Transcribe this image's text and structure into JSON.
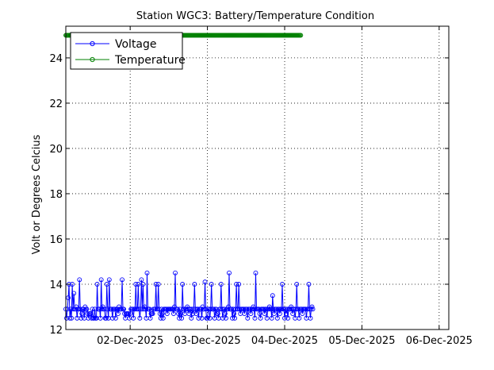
{
  "chart_data": {
    "type": "line",
    "title": "Station WGC3: Battery/Temperature Condition",
    "xlabel": "",
    "ylabel": "Volt or Degrees Celcius",
    "x_range": [
      "2025-12-01T04:00",
      "2025-12-06T03:00"
    ],
    "x_ticks": [
      "02-Dec-2025",
      "03-Dec-2025",
      "04-Dec-2025",
      "05-Dec-2025",
      "06-Dec-2025"
    ],
    "ylim": [
      12,
      25.4
    ],
    "y_ticks": [
      12,
      14,
      16,
      18,
      20,
      22,
      24
    ],
    "grid": true,
    "legend_position": "top-left",
    "series": [
      {
        "name": "Voltage",
        "color": "#0000ff",
        "marker": "circle",
        "start": "2025-12-01T04:00",
        "step_hours": 0.25,
        "values": [
          12.9,
          12.5,
          12.9,
          13.4,
          14.0,
          12.5,
          12.9,
          12.5,
          14.0,
          12.9,
          13.6,
          12.9,
          12.9,
          13.0,
          12.5,
          12.9,
          12.9,
          14.2,
          12.9,
          12.5,
          12.7,
          12.9,
          12.9,
          12.5,
          13.0,
          12.9,
          12.9,
          12.7,
          12.5,
          12.7,
          12.7,
          12.7,
          12.5,
          12.9,
          12.5,
          12.5,
          12.9,
          12.5,
          12.5,
          14.0,
          12.9,
          12.9,
          12.9,
          12.5,
          14.2,
          12.9,
          13.0,
          12.9,
          12.9,
          12.5,
          12.5,
          14.0,
          12.9,
          12.5,
          14.2,
          12.9,
          12.9,
          12.9,
          12.5,
          12.9,
          12.9,
          12.9,
          12.5,
          12.9,
          12.9,
          12.7,
          13.0,
          12.9,
          12.9,
          12.9,
          14.2,
          12.9,
          12.9,
          12.7,
          12.5,
          12.7,
          12.7,
          12.7,
          12.7,
          12.5,
          12.7,
          12.9,
          12.9,
          12.9,
          12.5,
          12.9,
          12.9,
          14.0,
          12.9,
          12.9,
          14.0,
          12.9,
          12.5,
          12.9,
          14.2,
          12.9,
          14.0,
          12.9,
          13.0,
          12.9,
          12.5,
          14.5,
          12.9,
          12.9,
          12.9,
          12.5,
          12.7,
          12.7,
          12.7,
          12.9,
          12.9,
          12.9,
          14.0,
          12.9,
          12.9,
          14.0,
          12.9,
          12.7,
          12.5,
          12.9,
          12.7,
          12.5,
          12.9,
          12.9,
          12.9,
          12.9,
          12.7,
          12.9,
          12.9,
          12.9,
          12.9,
          12.9,
          12.9,
          12.9,
          12.7,
          13.0,
          14.5,
          12.9,
          12.9,
          12.9,
          12.7,
          12.5,
          12.9,
          12.7,
          12.5,
          14.0,
          12.9,
          12.9,
          12.7,
          12.9,
          12.9,
          13.0,
          12.9,
          12.7,
          12.9,
          12.9,
          12.5,
          12.9,
          12.7,
          12.9,
          14.0,
          12.9,
          12.7,
          12.9,
          12.9,
          12.5,
          12.9,
          12.9,
          12.9,
          12.5,
          13.0,
          12.9,
          12.9,
          14.1,
          12.9,
          12.5,
          12.5,
          12.9,
          12.9,
          12.5,
          12.9,
          14.0,
          12.9,
          12.9,
          12.9,
          12.5,
          12.9,
          12.9,
          12.7,
          12.7,
          12.5,
          12.9,
          12.9,
          14.0,
          12.9,
          12.5,
          12.9,
          12.9,
          12.7,
          12.5,
          12.9,
          12.9,
          13.0,
          14.5,
          12.9,
          12.9,
          12.9,
          12.5,
          12.9,
          12.7,
          12.5,
          12.9,
          14.0,
          12.9,
          12.9,
          14.0,
          12.9,
          12.7,
          12.9,
          12.9,
          12.9,
          12.9,
          12.7,
          12.9,
          12.9,
          12.9,
          12.5,
          12.9,
          12.9,
          12.9,
          12.7,
          12.9,
          12.9,
          13.0,
          12.9,
          12.5,
          14.5,
          12.9,
          12.9,
          12.9,
          12.9,
          12.7,
          12.5,
          12.9,
          12.9,
          12.9,
          12.9,
          12.7,
          12.9,
          12.9,
          12.5,
          12.9,
          12.9,
          13.0,
          12.9,
          12.9,
          12.5,
          13.5,
          12.9,
          12.7,
          12.9,
          12.9,
          12.9,
          12.5,
          12.9,
          12.9,
          12.7,
          12.9,
          12.9,
          14.0,
          12.9,
          12.9,
          12.5,
          12.9,
          12.7,
          12.9,
          12.5,
          12.9,
          12.9,
          12.9,
          13.0,
          12.9,
          12.7,
          12.9,
          12.9,
          12.5,
          12.9,
          14.0,
          12.9,
          12.9,
          12.5,
          12.9,
          12.9,
          12.9,
          12.7,
          12.9,
          12.9,
          12.9,
          12.9,
          12.5,
          12.9,
          12.9,
          14.0,
          12.9,
          12.5,
          12.9,
          13.0,
          12.9
        ]
      },
      {
        "name": "Temperature",
        "color": "#008000",
        "marker": "circle",
        "start": "2025-12-01T04:00",
        "step_hours": 0.25,
        "constant_value": 25.0,
        "count": 293
      }
    ]
  }
}
